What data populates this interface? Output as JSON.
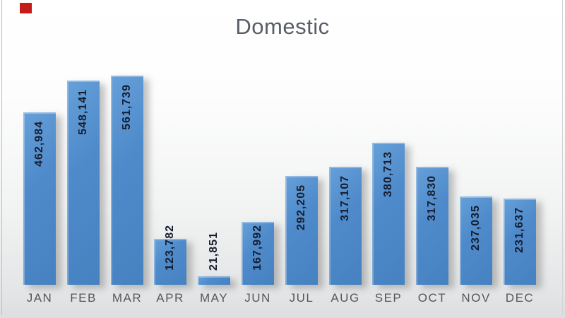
{
  "title": "Domestic",
  "recording_indicator": {
    "color": "#c51c1a"
  },
  "colors": {
    "bar": "#4f8bcb",
    "bar_highlight": "#66a0d9",
    "value_label": "#161d30",
    "axis_text": "#54575b",
    "title_text": "#575d66",
    "background_top": "#ffffff",
    "background_bottom": "#dddedf"
  },
  "chart_data": {
    "type": "bar",
    "title": "Domestic",
    "categories": [
      "JAN",
      "FEB",
      "MAR",
      "APR",
      "MAY",
      "JUN",
      "JUL",
      "AUG",
      "SEP",
      "OCT",
      "NOV",
      "DEC"
    ],
    "values": [
      462984,
      548141,
      561739,
      123782,
      21851,
      167992,
      292205,
      317107,
      380713,
      317830,
      237035,
      231637
    ],
    "value_labels": [
      "462,984",
      "548,141",
      "561,739",
      "123,782",
      "21,851",
      "167,992",
      "292,205",
      "317,107",
      "380,713",
      "317,830",
      "237,035",
      "231,637"
    ],
    "xlabel": "",
    "ylabel": "",
    "ylim": [
      0,
      561739
    ],
    "grid": false,
    "legend": false,
    "y_axis_visible": false,
    "data_label_style": "bold, rotated 270deg (reads bottom-to-top), inside end of bar; pops above bar when bar is too short"
  }
}
